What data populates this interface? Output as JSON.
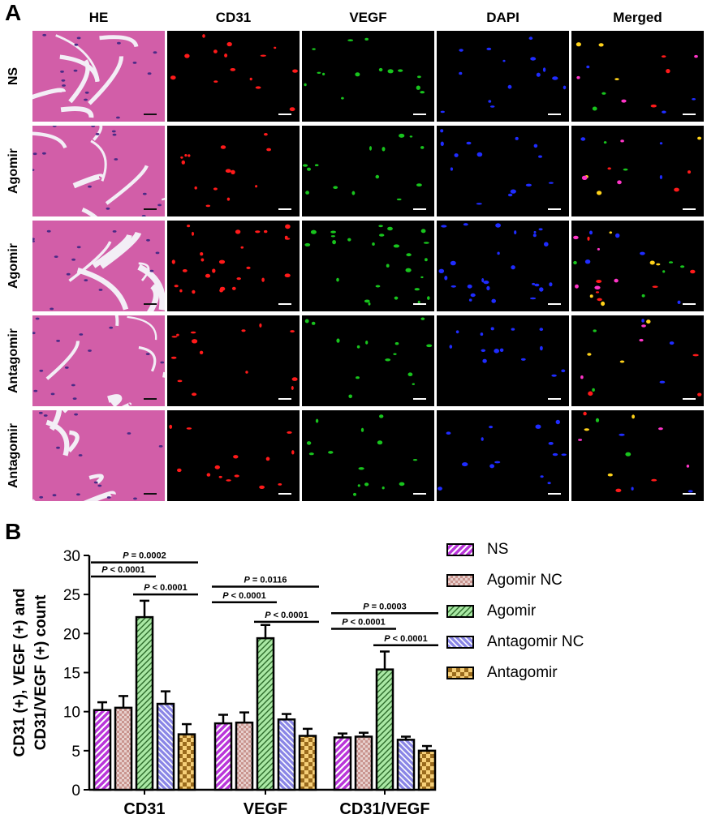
{
  "panel_a": {
    "letter": "A",
    "columns": [
      "HE",
      "CD31",
      "VEGF",
      "DAPI",
      "Merged"
    ],
    "rows": [
      "NS",
      "Agomir",
      "Agomir",
      "Antagomir",
      "Antagomir"
    ]
  },
  "panel_b": {
    "letter": "B"
  },
  "colors": {
    "NS": "#b935d9",
    "Agomir NC": "#c9958f",
    "Agomir": "#a9e8a4",
    "Antagomir NC": "#8a86e6",
    "Antagomir": "#f6cf78",
    "he_tissue": "#d25ea8",
    "he_gap": "#f3eef6"
  },
  "chart_data": {
    "type": "bar",
    "categories": [
      "CD31",
      "VEGF",
      "CD31/VEGF"
    ],
    "ylabel": "CD31 (+), VEGF (+) and CD31/VEGF (+) count",
    "ylabel_lines": [
      "CD31 (+), VEGF (+) and",
      "CD31/VEGF  (+) count"
    ],
    "ylim": [
      0,
      30
    ],
    "yticks": [
      0,
      5,
      10,
      15,
      20,
      25,
      30
    ],
    "series": [
      {
        "name": "NS",
        "values": [
          10.2,
          8.5,
          6.7
        ],
        "errors": [
          1.0,
          1.1,
          0.5
        ]
      },
      {
        "name": "Agomir NC",
        "values": [
          10.5,
          8.6,
          6.8
        ],
        "errors": [
          1.5,
          1.3,
          0.5
        ]
      },
      {
        "name": "Agomir",
        "values": [
          22.1,
          19.4,
          15.4
        ],
        "errors": [
          2.1,
          1.7,
          2.3
        ]
      },
      {
        "name": "Antagomir NC",
        "values": [
          11.0,
          9.0,
          6.4
        ],
        "errors": [
          1.6,
          0.7,
          0.4
        ]
      },
      {
        "name": "Antagomir",
        "values": [
          7.1,
          6.9,
          5.0
        ],
        "errors": [
          1.3,
          0.9,
          0.6
        ]
      }
    ],
    "annotations": [
      {
        "category": 0,
        "from": 0,
        "to": 4,
        "level": 29.1,
        "p_label": "P",
        "p_value": " = 0.0002"
      },
      {
        "category": 0,
        "from": 0,
        "to": 2,
        "level": 27.3,
        "p_label": "P",
        "p_value": " < 0.0001"
      },
      {
        "category": 0,
        "from": 2,
        "to": 4,
        "level": 25.0,
        "p_label": "P",
        "p_value": " < 0.0001"
      },
      {
        "category": 1,
        "from": 0,
        "to": 4,
        "level": 26.0,
        "p_label": "P",
        "p_value": " = 0.0116"
      },
      {
        "category": 1,
        "from": 0,
        "to": 2,
        "level": 24.0,
        "p_label": "P",
        "p_value": " < 0.0001"
      },
      {
        "category": 1,
        "from": 2,
        "to": 4,
        "level": 21.5,
        "p_label": "P",
        "p_value": " < 0.0001"
      },
      {
        "category": 2,
        "from": 0,
        "to": 4,
        "level": 22.6,
        "p_label": "P",
        "p_value": " = 0.0003"
      },
      {
        "category": 2,
        "from": 0,
        "to": 2,
        "level": 20.6,
        "p_label": "P",
        "p_value": " < 0.0001"
      },
      {
        "category": 2,
        "from": 2,
        "to": 4,
        "level": 18.5,
        "p_label": "P",
        "p_value": " < 0.0001"
      }
    ],
    "legend": [
      "NS",
      "Agomir NC",
      "Agomir",
      "Antagomir NC",
      "Antagomir"
    ],
    "legend_position": "right"
  }
}
